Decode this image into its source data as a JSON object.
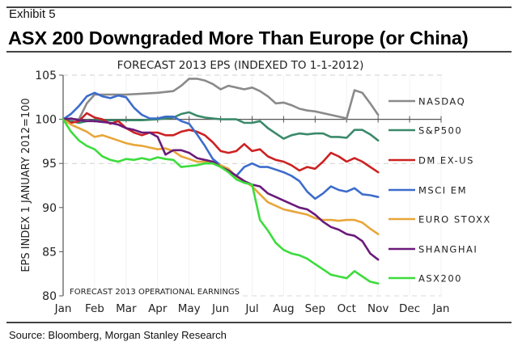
{
  "header": {
    "exhibit_label": "Exhibit 5",
    "headline": "ASX 200 Downgraded More Than Europe (or China)"
  },
  "footer": {
    "source": "Source: Bloomberg, Morgan Stanley Research"
  },
  "chart_data": {
    "type": "line",
    "title": "FORECAST 2013 EPS (INDEXED TO 1-1-2012)",
    "xlabel": "",
    "ylabel": "EPS INDEX 1 JANUARY 2012=100",
    "annotation": "FORECAST 2013 OPERATIONAL EARNINGS",
    "x_tick_labels": [
      "Jan",
      "Feb",
      "Mar",
      "Apr",
      "May",
      "Jun",
      "Jul",
      "Aug",
      "Sep",
      "Oct",
      "Nov",
      "Dec",
      "Jan"
    ],
    "xlim": [
      0,
      12
    ],
    "x_units": "months since 1 Jan 2012",
    "y_ticks": [
      80,
      85,
      90,
      95,
      100,
      105
    ],
    "ylim": [
      80,
      105
    ],
    "grid": "dashed horizontal at 95 and 105",
    "legend_placement": "right",
    "series": [
      {
        "name": "NASDAQ",
        "color": "#8a8a8a",
        "x": [
          0,
          0.5,
          0.75,
          1.0,
          1.25,
          1.5,
          2.0,
          2.5,
          3.0,
          3.5,
          3.75,
          4.0,
          4.25,
          4.5,
          4.75,
          5.0,
          5.25,
          5.5,
          5.75,
          6.0,
          6.25,
          6.5,
          6.75,
          7.0,
          7.25,
          7.5,
          7.75,
          8.0,
          8.5,
          9.0,
          9.25,
          9.5,
          9.75,
          10.0
        ],
        "values": [
          100,
          100,
          101.8,
          102.8,
          102.8,
          102.8,
          102.8,
          102.9,
          103.0,
          103.2,
          103.8,
          104.6,
          104.6,
          104.4,
          104.0,
          103.4,
          103.8,
          103.6,
          103.4,
          103.6,
          103.2,
          102.6,
          101.8,
          101.9,
          101.6,
          101.2,
          101.0,
          100.9,
          100.5,
          100.1,
          103.3,
          103.0,
          101.8,
          100.5
        ],
        "end_value": 100.5
      },
      {
        "name": "S&P500",
        "color": "#3a8a6a",
        "x": [
          0,
          0.25,
          0.5,
          0.75,
          1.0,
          1.5,
          2.0,
          2.5,
          3.0,
          3.5,
          3.75,
          4.0,
          4.25,
          4.5,
          4.75,
          5.0,
          5.25,
          5.5,
          5.75,
          6.0,
          6.25,
          6.5,
          6.75,
          7.0,
          7.25,
          7.5,
          7.75,
          8.0,
          8.25,
          8.5,
          8.75,
          9.0,
          9.25,
          9.5,
          9.75,
          10.0
        ],
        "values": [
          100,
          99.8,
          99.6,
          99.8,
          99.9,
          99.9,
          99.9,
          99.9,
          100.0,
          100.2,
          100.6,
          100.8,
          100.4,
          100.2,
          100.1,
          100.0,
          100.0,
          100.0,
          99.6,
          99.6,
          99.8,
          99.0,
          98.4,
          97.8,
          98.2,
          98.4,
          98.3,
          98.4,
          98.4,
          98.0,
          98.0,
          97.9,
          98.8,
          98.8,
          98.3,
          97.6
        ],
        "end_value": 97.6
      },
      {
        "name": "DM EX-US",
        "color": "#cc2222",
        "x": [
          0,
          0.25,
          0.5,
          0.75,
          1.0,
          1.25,
          1.5,
          1.75,
          2.0,
          2.25,
          2.5,
          2.75,
          3.0,
          3.25,
          3.5,
          3.75,
          4.0,
          4.25,
          4.5,
          4.75,
          5.0,
          5.25,
          5.5,
          5.75,
          6.0,
          6.25,
          6.5,
          6.75,
          7.0,
          7.25,
          7.5,
          7.75,
          8.0,
          8.25,
          8.5,
          8.75,
          9.0,
          9.25,
          9.5,
          9.75,
          10.0
        ],
        "values": [
          100,
          99.6,
          99.8,
          100.7,
          100.2,
          100.0,
          99.5,
          99.8,
          99.0,
          98.5,
          98.2,
          98.5,
          98.5,
          98.2,
          98.2,
          98.6,
          98.8,
          98.6,
          98.2,
          97.4,
          96.4,
          96.2,
          96.4,
          97.2,
          96.4,
          96.6,
          95.8,
          95.4,
          95.2,
          94.8,
          94.2,
          94.6,
          94.4,
          95.2,
          96.2,
          95.8,
          95.2,
          95.6,
          95.2,
          94.6,
          94.0
        ],
        "end_value": 94.0
      },
      {
        "name": "MSCI EM",
        "color": "#3d6ccc",
        "x": [
          0,
          0.25,
          0.5,
          0.75,
          1.0,
          1.25,
          1.5,
          1.75,
          2.0,
          2.25,
          2.5,
          2.75,
          3.0,
          3.25,
          3.5,
          3.75,
          4.0,
          4.25,
          4.5,
          4.75,
          5.0,
          5.25,
          5.5,
          5.75,
          6.0,
          6.25,
          6.5,
          6.75,
          7.0,
          7.25,
          7.5,
          7.75,
          8.0,
          8.25,
          8.5,
          8.75,
          9.0,
          9.25,
          9.5,
          9.75,
          10.0
        ],
        "values": [
          100,
          100.6,
          101.5,
          102.6,
          103.0,
          102.6,
          102.4,
          102.7,
          102.5,
          101.3,
          100.5,
          100.1,
          100.1,
          100.3,
          100.3,
          99.8,
          99.5,
          98.3,
          97.0,
          95.5,
          94.8,
          94.0,
          93.6,
          94.6,
          95.0,
          94.6,
          94.6,
          94.3,
          94.0,
          93.6,
          93.0,
          91.8,
          91.0,
          91.6,
          92.4,
          92.0,
          91.8,
          92.2,
          91.5,
          91.4,
          91.2
        ],
        "end_value": 91.2
      },
      {
        "name": "EURO STOXX",
        "color": "#e8a63a",
        "x": [
          0,
          0.25,
          0.5,
          0.75,
          1.0,
          1.25,
          1.5,
          1.75,
          2.0,
          2.25,
          2.5,
          2.75,
          3.0,
          3.25,
          3.5,
          3.75,
          4.0,
          4.25,
          4.5,
          4.75,
          5.0,
          5.25,
          5.5,
          5.75,
          6.0,
          6.25,
          6.5,
          6.75,
          7.0,
          7.25,
          7.5,
          7.75,
          8.0,
          8.25,
          8.5,
          8.75,
          9.0,
          9.25,
          9.5,
          9.75,
          10.0
        ],
        "values": [
          100,
          99.4,
          99.0,
          98.6,
          98.0,
          98.2,
          97.9,
          97.6,
          97.3,
          97.1,
          97.0,
          96.8,
          96.6,
          96.7,
          96.4,
          95.8,
          95.5,
          95.2,
          95.2,
          95.0,
          94.8,
          94.4,
          93.5,
          93.0,
          92.4,
          91.5,
          90.6,
          90.2,
          89.8,
          89.6,
          89.4,
          89.2,
          88.8,
          88.6,
          88.6,
          88.5,
          88.6,
          88.6,
          88.3,
          87.6,
          87.0
        ],
        "end_value": 87.0
      },
      {
        "name": "SHANGHAI",
        "color": "#6a1a7a",
        "x": [
          0,
          0.25,
          0.5,
          0.75,
          1.0,
          1.25,
          1.5,
          1.75,
          2.0,
          2.25,
          2.5,
          2.75,
          3.0,
          3.25,
          3.5,
          3.75,
          4.0,
          4.25,
          4.5,
          4.75,
          5.0,
          5.25,
          5.5,
          5.75,
          6.0,
          6.25,
          6.5,
          6.75,
          7.0,
          7.25,
          7.5,
          7.75,
          8.0,
          8.25,
          8.5,
          8.75,
          9.0,
          9.25,
          9.5,
          9.75,
          10.0
        ],
        "values": [
          100,
          100.1,
          99.9,
          99.8,
          99.8,
          99.7,
          99.6,
          99.4,
          99.0,
          98.8,
          98.5,
          98.5,
          98.0,
          96.0,
          96.5,
          96.5,
          96.2,
          95.6,
          95.4,
          95.2,
          94.6,
          94.2,
          93.6,
          93.0,
          92.6,
          92.4,
          91.6,
          91.2,
          90.8,
          90.4,
          90.0,
          89.8,
          89.2,
          88.4,
          87.8,
          87.5,
          87.0,
          86.8,
          86.2,
          84.8,
          84.1
        ],
        "end_value": 84.1
      },
      {
        "name": "ASX200",
        "color": "#3ddc3d",
        "x": [
          0,
          0.25,
          0.5,
          0.75,
          1.0,
          1.25,
          1.5,
          1.75,
          2.0,
          2.25,
          2.5,
          2.75,
          3.0,
          3.25,
          3.5,
          3.75,
          4.0,
          4.25,
          4.5,
          4.75,
          5.0,
          5.25,
          5.5,
          5.75,
          6.0,
          6.25,
          6.5,
          6.75,
          7.0,
          7.25,
          7.5,
          7.75,
          8.0,
          8.25,
          8.5,
          8.75,
          9.0,
          9.25,
          9.5,
          9.75,
          10.0
        ],
        "values": [
          100,
          98.6,
          97.6,
          97.0,
          96.6,
          95.8,
          95.4,
          95.2,
          95.5,
          95.4,
          95.6,
          95.4,
          95.7,
          95.5,
          95.4,
          94.6,
          94.7,
          94.8,
          95.0,
          95.0,
          94.6,
          94.0,
          93.2,
          92.8,
          92.6,
          88.6,
          87.4,
          86.0,
          85.2,
          84.8,
          84.6,
          84.2,
          83.6,
          83.0,
          82.4,
          82.2,
          82.0,
          82.8,
          82.2,
          81.6,
          81.4
        ],
        "end_value": 81.4
      }
    ]
  }
}
